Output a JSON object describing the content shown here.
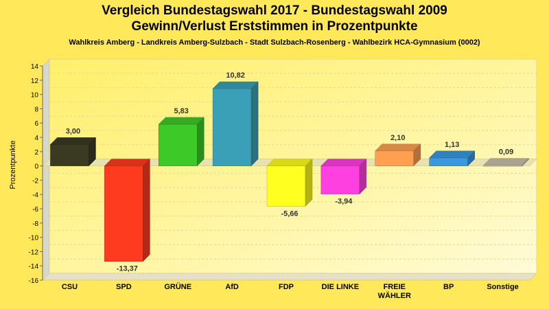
{
  "chart_data": {
    "type": "bar",
    "title_line1": "Vergleich Bundestagswahl 2017 - Bundestagswahl 2009",
    "title_line2": "Gewinn/Verlust Erststimmen in Prozentpunkte",
    "subtitle": "Wahlkreis Amberg - Landkreis Amberg-Sulzbach - Stadt Sulzbach-Rosenberg - Wahlbezirk HCA-Gymnasium (0002)",
    "ylabel": "Prozentpunkte",
    "xlabel": "",
    "ylim": [
      -16,
      14
    ],
    "ytick_step": 2,
    "grid": true,
    "categories": [
      "CSU",
      "SPD",
      "GRÜNE",
      "AfD",
      "FDP",
      "DIE LINKE",
      "FREIE WÄHLER",
      "BP",
      "Sonstige"
    ],
    "category_lines": [
      [
        "CSU"
      ],
      [
        "SPD"
      ],
      [
        "GRÜNE"
      ],
      [
        "AfD"
      ],
      [
        "FDP"
      ],
      [
        "DIE LINKE"
      ],
      [
        "FREIE",
        "WÄHLER"
      ],
      [
        "BP"
      ],
      [
        "Sonstige"
      ]
    ],
    "values": [
      3.0,
      -13.37,
      5.83,
      10.82,
      -5.66,
      -3.94,
      2.1,
      1.13,
      0.09
    ],
    "value_labels": [
      "3,00",
      "-13,37",
      "5,83",
      "10,82",
      "-5,66",
      "-3,94",
      "2,10",
      "1,13",
      "0,09"
    ],
    "colors": [
      "#3a3a22",
      "#ff3b1f",
      "#3dc928",
      "#3aa0b8",
      "#ffff20",
      "#ff40e0",
      "#ff9f50",
      "#3a98e0",
      "#c8c0a8"
    ]
  }
}
